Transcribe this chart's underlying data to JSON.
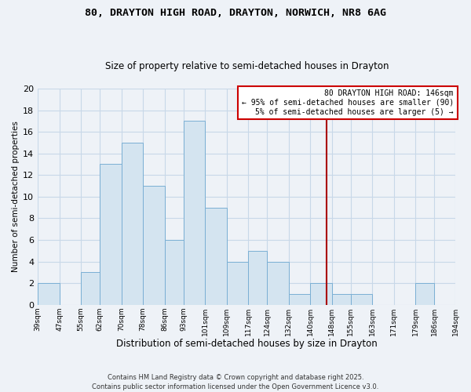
{
  "title1": "80, DRAYTON HIGH ROAD, DRAYTON, NORWICH, NR8 6AG",
  "title2": "Size of property relative to semi-detached houses in Drayton",
  "xlabel": "Distribution of semi-detached houses by size in Drayton",
  "ylabel": "Number of semi-detached properties",
  "bin_edges": [
    39,
    47,
    55,
    62,
    70,
    78,
    86,
    93,
    101,
    109,
    117,
    124,
    132,
    140,
    148,
    155,
    163,
    171,
    179,
    186,
    194
  ],
  "bin_counts": [
    2,
    0,
    3,
    13,
    15,
    11,
    6,
    17,
    9,
    4,
    5,
    4,
    1,
    2,
    1,
    1,
    0,
    0,
    2,
    0
  ],
  "bar_color": "#d4e4f0",
  "bar_edgecolor": "#7aafd4",
  "grid_color": "#c8d8e8",
  "vline_x": 146,
  "vline_color": "#aa0000",
  "ylim": [
    0,
    20
  ],
  "yticks": [
    0,
    2,
    4,
    6,
    8,
    10,
    12,
    14,
    16,
    18,
    20
  ],
  "tick_labels": [
    "39sqm",
    "47sqm",
    "55sqm",
    "62sqm",
    "70sqm",
    "78sqm",
    "86sqm",
    "93sqm",
    "101sqm",
    "109sqm",
    "117sqm",
    "124sqm",
    "132sqm",
    "140sqm",
    "148sqm",
    "155sqm",
    "163sqm",
    "171sqm",
    "179sqm",
    "186sqm",
    "194sqm"
  ],
  "annotation_title": "80 DRAYTON HIGH ROAD: 146sqm",
  "annotation_line1": "← 95% of semi-detached houses are smaller (90)",
  "annotation_line2": "5% of semi-detached houses are larger (5) →",
  "footnote1": "Contains HM Land Registry data © Crown copyright and database right 2025.",
  "footnote2": "Contains public sector information licensed under the Open Government Licence v3.0.",
  "background_color": "#eef2f7"
}
